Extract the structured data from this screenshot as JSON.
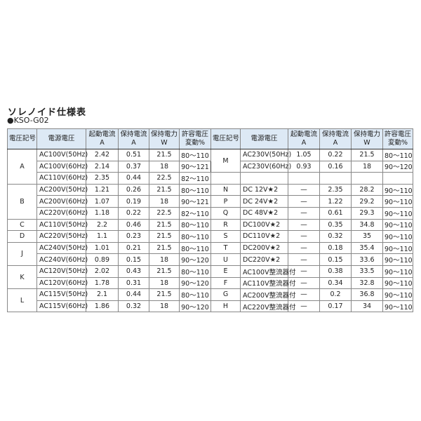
{
  "title": "ソレノイド仕様表",
  "subtitle": "●KSO-G02",
  "headers": [
    "電圧記号",
    "電源電圧",
    "起動電流\nA",
    "保持電流\nA",
    "保持電力\nW",
    "許容電圧\n変動%"
  ],
  "left": [
    {
      "code": "A",
      "rows": [
        [
          "AC100V(50Hz)",
          "2.42",
          "0.51",
          "21.5",
          "80〜110"
        ],
        [
          "AC100V(60Hz)",
          "2.14",
          "0.37",
          "18",
          "90〜121"
        ],
        [
          "AC110V(60Hz)",
          "2.35",
          "0.44",
          "22.5",
          "82〜110"
        ]
      ]
    },
    {
      "code": "B",
      "rows": [
        [
          "AC200V(50Hz)",
          "1.21",
          "0.26",
          "21.5",
          "80〜110"
        ],
        [
          "AC200V(60Hz)",
          "1.07",
          "0.19",
          "18",
          "90〜121"
        ],
        [
          "AC220V(60Hz)",
          "1.18",
          "0.22",
          "22.5",
          "82〜110"
        ]
      ]
    },
    {
      "code": "C",
      "rows": [
        [
          "AC110V(50Hz)",
          "2.2",
          "0.46",
          "21.5",
          "80〜110"
        ]
      ]
    },
    {
      "code": "D",
      "rows": [
        [
          "AC220V(50Hz)",
          "1.1",
          "0.23",
          "21.5",
          "80〜110"
        ]
      ]
    },
    {
      "code": "J",
      "rows": [
        [
          "AC240V(50Hz)",
          "1.01",
          "0.21",
          "21.5",
          "80〜110"
        ],
        [
          "AC240V(60Hz)",
          "0.89",
          "0.15",
          "18",
          "90〜120"
        ]
      ]
    },
    {
      "code": "K",
      "rows": [
        [
          "AC120V(50Hz)",
          "2.02",
          "0.43",
          "21.5",
          "80〜110"
        ],
        [
          "AC120V(60Hz)",
          "1.78",
          "0.31",
          "18",
          "90〜120"
        ]
      ]
    },
    {
      "code": "L",
      "rows": [
        [
          "AC115V(50Hz)",
          "2.1",
          "0.44",
          "21.5",
          "80〜110"
        ],
        [
          "AC115V(60Hz)",
          "1.86",
          "0.32",
          "18",
          "90〜120"
        ]
      ]
    }
  ],
  "right": [
    {
      "code": "M",
      "rows": [
        [
          "AC230V(50Hz)",
          "1.05",
          "0.22",
          "21.5",
          "80〜110"
        ],
        [
          "AC230V(60Hz)",
          "0.93",
          "0.16",
          "18",
          "90〜120"
        ]
      ]
    },
    {
      "code": "",
      "rows": [
        [
          "",
          "",
          "",
          "",
          ""
        ]
      ]
    },
    {
      "code": "N",
      "rows": [
        [
          "DC 12V★2",
          "—",
          "2.35",
          "28.2",
          "90〜110"
        ]
      ]
    },
    {
      "code": "P",
      "rows": [
        [
          "DC 24V★2",
          "—",
          "1.22",
          "29.2",
          "90〜110"
        ]
      ]
    },
    {
      "code": "Q",
      "rows": [
        [
          "DC 48V★2",
          "—",
          "0.61",
          "29.3",
          "90〜110"
        ]
      ]
    },
    {
      "code": "R",
      "rows": [
        [
          "DC100V★2",
          "—",
          "0.35",
          "34.8",
          "90〜110"
        ]
      ]
    },
    {
      "code": "S",
      "rows": [
        [
          "DC110V★2",
          "—",
          "0.32",
          "35",
          "90〜110"
        ]
      ]
    },
    {
      "code": "T",
      "rows": [
        [
          "DC200V★2",
          "—",
          "0.18",
          "35.4",
          "90〜110"
        ]
      ]
    },
    {
      "code": "U",
      "rows": [
        [
          "DC220V★2",
          "—",
          "0.15",
          "33.6",
          "90〜110"
        ]
      ]
    },
    {
      "code": "E",
      "rows": [
        [
          "AC100V整流器付",
          "—",
          "0.38",
          "33.5",
          "90〜110"
        ]
      ]
    },
    {
      "code": "F",
      "rows": [
        [
          "AC110V整流器付",
          "—",
          "0.34",
          "32.8",
          "90〜110"
        ]
      ]
    },
    {
      "code": "G",
      "rows": [
        [
          "AC200V整流器付",
          "—",
          "0.2",
          "36.8",
          "90〜110"
        ]
      ]
    },
    {
      "code": "H",
      "rows": [
        [
          "AC220V整流器付",
          "—",
          "0.17",
          "34",
          "90〜110"
        ]
      ]
    }
  ]
}
